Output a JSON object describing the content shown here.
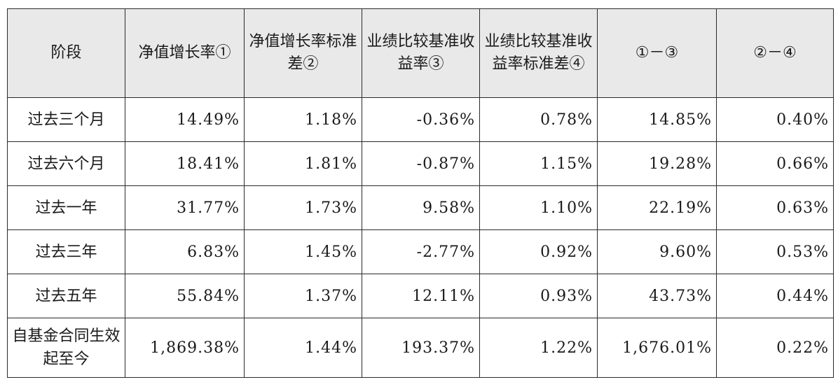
{
  "table": {
    "headers": [
      "阶段",
      "净值增长率①",
      "净值增长率标准差②",
      "业绩比较基准收益率③",
      "业绩比较基准收益率标准差④",
      "①－③",
      "②－④"
    ],
    "rows": [
      [
        "过去三个月",
        "14.49%",
        "1.18%",
        "-0.36%",
        "0.78%",
        "14.85%",
        "0.40%"
      ],
      [
        "过去六个月",
        "18.41%",
        "1.81%",
        "-0.87%",
        "1.15%",
        "19.28%",
        "0.66%"
      ],
      [
        "过去一年",
        "31.77%",
        "1.73%",
        "9.58%",
        "1.10%",
        "22.19%",
        "0.63%"
      ],
      [
        "过去三年",
        "6.83%",
        "1.45%",
        "-2.77%",
        "0.92%",
        "9.60%",
        "0.53%"
      ],
      [
        "过去五年",
        "55.84%",
        "1.37%",
        "12.11%",
        "0.93%",
        "43.73%",
        "0.44%"
      ],
      [
        "自基金合同生效起至今",
        "1,869.38%",
        "1.44%",
        "193.37%",
        "1.22%",
        "1,676.01%",
        "0.22%"
      ]
    ]
  }
}
